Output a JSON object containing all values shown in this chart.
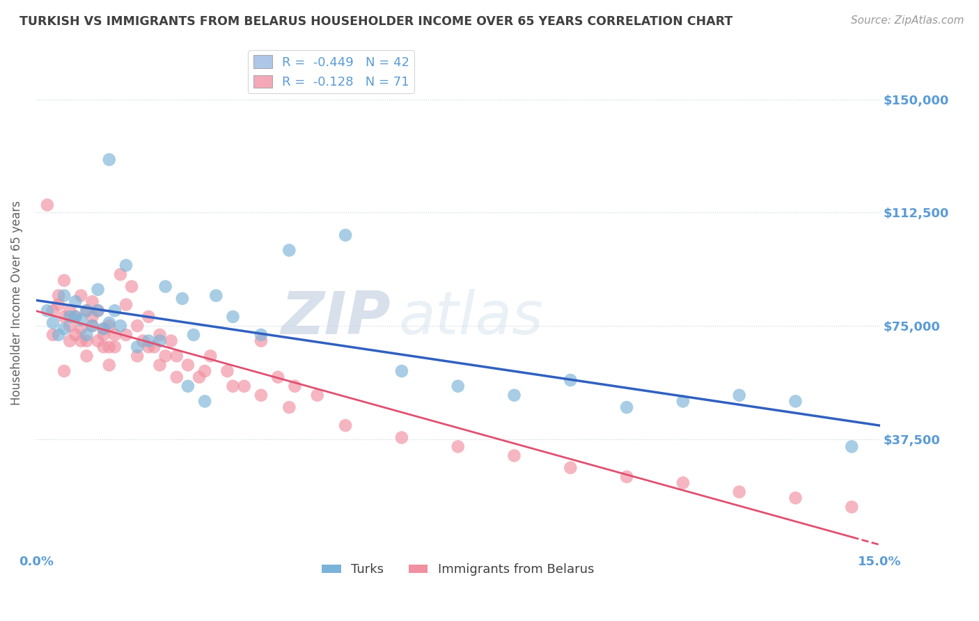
{
  "title": "TURKISH VS IMMIGRANTS FROM BELARUS HOUSEHOLDER INCOME OVER 65 YEARS CORRELATION CHART",
  "source": "Source: ZipAtlas.com",
  "ylabel": "Householder Income Over 65 years",
  "xlim": [
    0.0,
    15.0
  ],
  "ylim": [
    0,
    165000
  ],
  "yticks": [
    37500,
    75000,
    112500,
    150000
  ],
  "ytick_labels": [
    "$37,500",
    "$75,000",
    "$112,500",
    "$150,000"
  ],
  "xtick_labels": [
    "0.0%",
    "15.0%"
  ],
  "legend_entries": [
    {
      "label": "R =  -0.449   N = 42",
      "color": "#aec6e8"
    },
    {
      "label": "R =  -0.128   N = 71",
      "color": "#f4a9b8"
    }
  ],
  "series1_label": "Turks",
  "series2_label": "Immigrants from Belarus",
  "series1_color": "#7ab3d8",
  "series2_color": "#f090a0",
  "trendline1_color": "#3060c0",
  "trendline2_color": "#e05070",
  "watermark_zip": "ZIP",
  "watermark_atlas": "atlas",
  "background_color": "#ffffff",
  "grid_color": "#c8d0e0",
  "title_color": "#404040",
  "axis_color": "#5b9bd5",
  "turks_x": [
    0.2,
    0.3,
    0.4,
    0.5,
    0.6,
    0.7,
    0.8,
    0.9,
    1.0,
    1.1,
    1.2,
    1.3,
    1.4,
    1.6,
    2.0,
    2.3,
    2.6,
    2.8,
    3.2,
    3.5,
    4.0,
    4.5,
    5.5,
    6.5,
    7.5,
    8.5,
    9.5,
    10.5,
    11.5,
    12.5,
    13.5,
    14.5,
    0.5,
    0.7,
    0.9,
    1.1,
    1.3,
    1.5,
    1.8,
    2.2,
    2.7,
    3.0
  ],
  "turks_y": [
    80000,
    76000,
    72000,
    85000,
    78000,
    83000,
    77000,
    80000,
    75000,
    87000,
    74000,
    130000,
    80000,
    95000,
    70000,
    88000,
    84000,
    72000,
    85000,
    78000,
    72000,
    100000,
    105000,
    60000,
    55000,
    52000,
    57000,
    48000,
    50000,
    52000,
    50000,
    35000,
    74000,
    78000,
    72000,
    80000,
    76000,
    75000,
    68000,
    70000,
    55000,
    50000
  ],
  "belarus_x": [
    0.2,
    0.3,
    0.3,
    0.4,
    0.5,
    0.5,
    0.6,
    0.6,
    0.7,
    0.7,
    0.8,
    0.8,
    0.9,
    0.9,
    1.0,
    1.0,
    1.1,
    1.1,
    1.2,
    1.2,
    1.3,
    1.3,
    1.4,
    1.5,
    1.6,
    1.7,
    1.8,
    1.9,
    2.0,
    2.1,
    2.2,
    2.3,
    2.4,
    2.5,
    2.7,
    2.9,
    3.1,
    3.4,
    3.7,
    4.0,
    4.3,
    4.6,
    5.0,
    0.4,
    0.6,
    0.8,
    1.0,
    1.2,
    1.4,
    1.6,
    1.8,
    2.0,
    2.2,
    2.5,
    3.0,
    3.5,
    4.0,
    4.5,
    5.5,
    6.5,
    7.5,
    8.5,
    9.5,
    10.5,
    11.5,
    12.5,
    13.5,
    14.5,
    0.5,
    0.9,
    1.3
  ],
  "belarus_y": [
    115000,
    80000,
    72000,
    85000,
    78000,
    90000,
    80000,
    70000,
    78000,
    72000,
    85000,
    74000,
    80000,
    70000,
    83000,
    75000,
    80000,
    70000,
    74000,
    68000,
    75000,
    68000,
    72000,
    92000,
    82000,
    88000,
    75000,
    70000,
    78000,
    68000,
    72000,
    65000,
    70000,
    65000,
    62000,
    58000,
    65000,
    60000,
    55000,
    70000,
    58000,
    55000,
    52000,
    82000,
    75000,
    70000,
    78000,
    72000,
    68000,
    72000,
    65000,
    68000,
    62000,
    58000,
    60000,
    55000,
    52000,
    48000,
    42000,
    38000,
    35000,
    32000,
    28000,
    25000,
    23000,
    20000,
    18000,
    15000,
    60000,
    65000,
    62000
  ]
}
